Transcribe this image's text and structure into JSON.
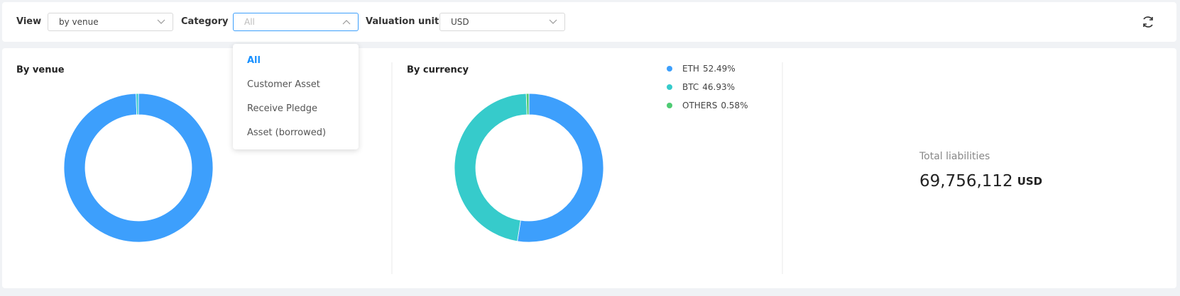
{
  "toolbar": {
    "view": {
      "label": "View",
      "value": "by venue"
    },
    "category": {
      "label": "Category",
      "placeholder": "All",
      "options": [
        "All",
        "Customer Asset",
        "Receive Pledge",
        "Asset (borrowed)"
      ]
    },
    "valuation": {
      "label": "Valuation unit",
      "value": "USD"
    }
  },
  "chart_data": [
    {
      "type": "pie",
      "title": "By venue",
      "values": [
        99.5,
        0.5
      ],
      "colors": [
        "#3d9ffc",
        "#36cbcb"
      ]
    },
    {
      "type": "pie",
      "title": "By currency",
      "categories": [
        "ETH",
        "BTC",
        "OTHERS"
      ],
      "values": [
        52.49,
        46.93,
        0.58
      ],
      "value_labels": [
        "52.49%",
        "46.93%",
        "0.58%"
      ],
      "colors": [
        "#3d9ffc",
        "#36cbcb",
        "#4ecb73"
      ],
      "legend": "right"
    }
  ],
  "total": {
    "label": "Total liabilities",
    "value": "69,756,112",
    "unit": "USD"
  }
}
